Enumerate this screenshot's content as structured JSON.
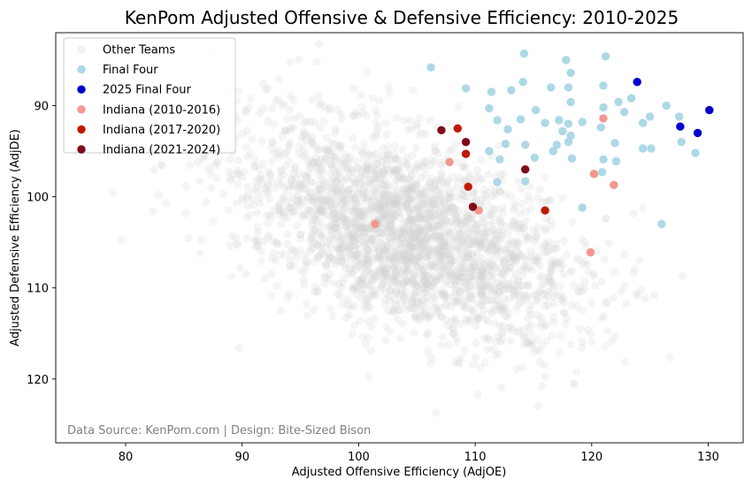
{
  "chart_data": {
    "type": "scatter",
    "title": "KenPom Adjusted Offensive & Defensive Efficiency: 2010-2025",
    "xlabel": "Adjusted Offensive Efficiency (AdjOE)",
    "ylabel": "Adjusted Defensive Efficiency (AdjDE)",
    "xlim": [
      74,
      133
    ],
    "ylim": [
      127,
      82
    ],
    "y_inverted": true,
    "xticks": [
      80,
      90,
      100,
      110,
      120,
      130
    ],
    "yticks": [
      90,
      100,
      110,
      120
    ],
    "legend_position": "upper-left",
    "source_note": "Data Source: KenPom.com | Design: Bite-Sized Bison",
    "background_cloud": {
      "name": "Other Teams",
      "color": "#d3d3d3",
      "count": 2600,
      "x_mean": 104,
      "x_sd": 7.2,
      "y_mean": 104,
      "y_sd": 6.0,
      "correlation": 0.5
    },
    "series": [
      {
        "name": "Other Teams",
        "color": "#d3d3d3",
        "marker_opacity": 0.25,
        "points": []
      },
      {
        "name": "Final Four",
        "color": "#add8e6",
        "marker_opacity": 1,
        "points": [
          [
            114.2,
            84.3
          ],
          [
            121.2,
            84.6
          ],
          [
            106.2,
            85.8
          ],
          [
            117.8,
            85.0
          ],
          [
            118.2,
            86.4
          ],
          [
            114.1,
            87.4
          ],
          [
            109.2,
            88.1
          ],
          [
            113.1,
            88.3
          ],
          [
            116.5,
            88.0
          ],
          [
            118.0,
            88.0
          ],
          [
            121.0,
            87.8
          ],
          [
            111.4,
            88.5
          ],
          [
            118.2,
            89.6
          ],
          [
            122.3,
            89.6
          ],
          [
            123.4,
            89.2
          ],
          [
            126.4,
            90.0
          ],
          [
            111.2,
            90.3
          ],
          [
            115.2,
            90.5
          ],
          [
            121.0,
            90.2
          ],
          [
            122.8,
            90.7
          ],
          [
            111.9,
            91.6
          ],
          [
            113.9,
            91.5
          ],
          [
            116.0,
            91.9
          ],
          [
            117.2,
            91.6
          ],
          [
            119.2,
            91.8
          ],
          [
            124.4,
            91.9
          ],
          [
            125.0,
            91.2
          ],
          [
            127.5,
            91.2
          ],
          [
            112.8,
            92.6
          ],
          [
            117.5,
            92.8
          ],
          [
            118.0,
            92.0
          ],
          [
            120.8,
            92.4
          ],
          [
            118.2,
            93.3
          ],
          [
            112.6,
            94.2
          ],
          [
            114.3,
            94.3
          ],
          [
            117.0,
            94.3
          ],
          [
            118.0,
            94.0
          ],
          [
            122.0,
            94.1
          ],
          [
            124.4,
            94.7
          ],
          [
            125.1,
            94.7
          ],
          [
            127.7,
            94.0
          ],
          [
            111.2,
            95.0
          ],
          [
            112.1,
            95.9
          ],
          [
            115.1,
            95.7
          ],
          [
            116.7,
            95.0
          ],
          [
            118.3,
            95.8
          ],
          [
            121.0,
            95.9
          ],
          [
            122.1,
            96.1
          ],
          [
            128.9,
            95.2
          ],
          [
            120.9,
            97.3
          ],
          [
            111.9,
            98.4
          ],
          [
            114.3,
            98.3
          ],
          [
            119.2,
            101.2
          ],
          [
            126.0,
            103.0
          ]
        ]
      },
      {
        "name": "2025 Final Four",
        "color": "#0000cd",
        "marker_opacity": 1,
        "points": [
          [
            123.9,
            87.4
          ],
          [
            130.1,
            90.5
          ],
          [
            127.6,
            92.3
          ],
          [
            129.1,
            93.0
          ]
        ]
      },
      {
        "name": "Indiana (2010-2016)",
        "color": "#f4978e",
        "marker_opacity": 1,
        "points": [
          [
            121.0,
            91.4
          ],
          [
            107.8,
            96.2
          ],
          [
            120.2,
            97.5
          ],
          [
            121.9,
            98.7
          ],
          [
            110.3,
            101.5
          ],
          [
            101.4,
            103.0
          ],
          [
            119.9,
            106.1
          ]
        ]
      },
      {
        "name": "Indiana (2017-2020)",
        "color": "#c01a00",
        "marker_opacity": 1,
        "points": [
          [
            108.5,
            92.5
          ],
          [
            109.2,
            95.3
          ],
          [
            109.4,
            98.9
          ],
          [
            116.0,
            101.5
          ]
        ]
      },
      {
        "name": "Indiana (2021-2024)",
        "color": "#800a1a",
        "marker_opacity": 1,
        "points": [
          [
            107.1,
            92.7
          ],
          [
            109.2,
            94.0
          ],
          [
            114.3,
            97.0
          ],
          [
            109.8,
            101.1
          ]
        ]
      }
    ]
  }
}
